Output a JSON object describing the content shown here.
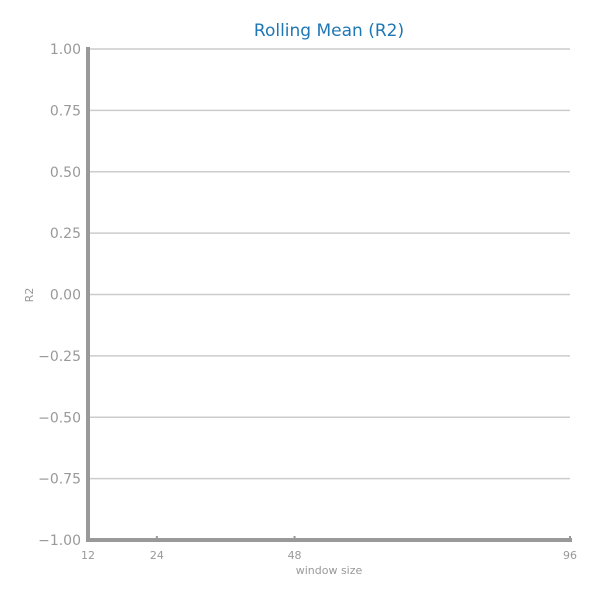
{
  "chart_data": {
    "type": "line",
    "title": "Rolling Mean (R2)",
    "xlabel": "window size",
    "ylabel": "R2",
    "xlim": [
      12,
      96
    ],
    "ylim": [
      -1.0,
      1.0
    ],
    "x_ticks": [
      12,
      24,
      48,
      96
    ],
    "x_tick_labels": [
      "12",
      "24",
      "48",
      "96"
    ],
    "y_ticks": [
      1.0,
      0.75,
      0.5,
      0.25,
      0.0,
      -0.25,
      -0.5,
      -0.75,
      -1.0
    ],
    "y_tick_labels": [
      "1.00",
      "0.75",
      "0.50",
      "0.25",
      "0.00",
      "−0.25",
      "−0.50",
      "−0.75",
      "−1.00"
    ],
    "grid": true,
    "series": [],
    "colors": {
      "title": "#1f77b4",
      "axis": "#999999",
      "grid": "#cccccc"
    }
  }
}
